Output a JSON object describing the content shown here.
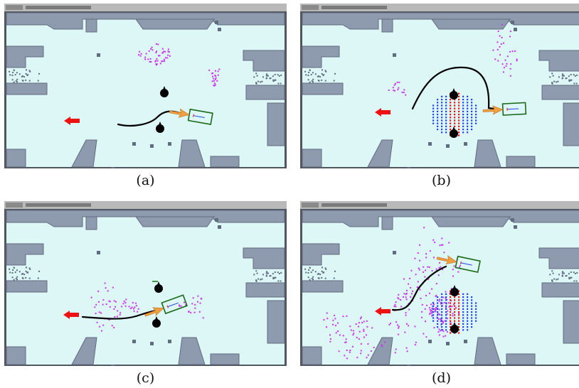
{
  "panels": [
    {
      "id": "a",
      "caption": "(a)",
      "variant": "a"
    },
    {
      "id": "b",
      "caption": "(b)",
      "variant": "b"
    },
    {
      "id": "c",
      "caption": "(c)",
      "variant": "c"
    },
    {
      "id": "d",
      "caption": "(d)",
      "variant": "d"
    }
  ],
  "colors": {
    "map_background": "#ddf6f6",
    "wall": "#8e9aae",
    "wall_dark": "#616c80",
    "menubar": "#b9b9b9",
    "window_frame": "#505660",
    "path": "#000000",
    "particles": "#cc33ee",
    "goal_arrow": "#ee1111",
    "robot_arrow": "#f0a040",
    "robot_box": "#1a6a1a",
    "people": "#000000",
    "grid_red": "#ee1111",
    "grid_blue": "#2244ee"
  },
  "icons": {
    "goal": "red-arrow-left",
    "robot": "robot-footprint-box",
    "person": "person-marker"
  }
}
